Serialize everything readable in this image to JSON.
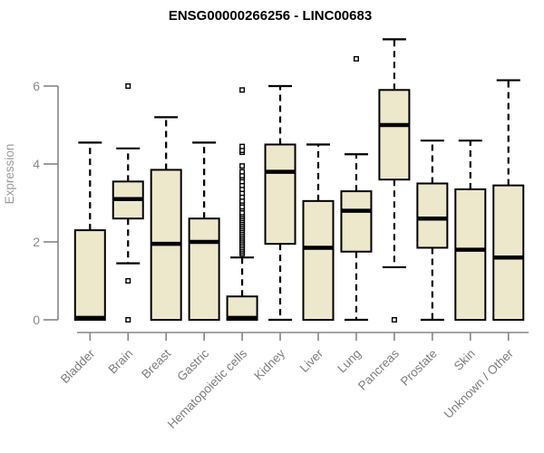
{
  "title": "ENSG00000266256 - LINC00683",
  "chart_data": {
    "type": "boxplot",
    "title": "ENSG00000266256 - LINC00683",
    "xlabel": "",
    "ylabel": "Expression",
    "yticks": [
      0,
      2,
      4,
      6
    ],
    "ylim": [
      0,
      7.3
    ],
    "grid": false,
    "legend": "none",
    "categories": [
      "Bladder",
      "Brain",
      "Breast",
      "Gastric",
      "Hematopoietic cells",
      "Kidney",
      "Liver",
      "Lung",
      "Pancreas",
      "Prostate",
      "Skin",
      "Unknown / Other"
    ],
    "boxes": [
      {
        "category": "Bladder",
        "whisker_low": 0,
        "q1": 0,
        "median": 0.05,
        "q3": 2.3,
        "whisker_high": 4.55,
        "outliers": []
      },
      {
        "category": "Brain",
        "whisker_low": 1.45,
        "q1": 2.6,
        "median": 3.1,
        "q3": 3.55,
        "whisker_high": 4.4,
        "outliers": [
          6.0,
          1.0,
          0.0
        ]
      },
      {
        "category": "Breast",
        "whisker_low": 0,
        "q1": 0,
        "median": 1.95,
        "q3": 3.85,
        "whisker_high": 5.2,
        "outliers": []
      },
      {
        "category": "Gastric",
        "whisker_low": 0,
        "q1": 0,
        "median": 2.0,
        "q3": 2.6,
        "whisker_high": 4.55,
        "outliers": []
      },
      {
        "category": "Hematopoietic cells",
        "whisker_low": 0,
        "q1": 0,
        "median": 0.05,
        "q3": 0.6,
        "whisker_high": 1.6,
        "outliers": [
          1.7,
          1.75,
          1.8,
          1.85,
          1.9,
          1.95,
          2.0,
          2.05,
          2.1,
          2.15,
          2.2,
          2.25,
          2.3,
          2.35,
          2.4,
          2.45,
          2.5,
          2.55,
          2.6,
          2.65,
          2.7,
          2.75,
          2.85,
          2.9,
          3.0,
          3.05,
          3.15,
          3.25,
          3.35,
          3.45,
          3.55,
          3.65,
          3.7,
          3.8,
          3.95,
          4.3,
          4.35,
          4.45,
          5.9
        ]
      },
      {
        "category": "Kidney",
        "whisker_low": 0,
        "q1": 1.95,
        "median": 3.8,
        "q3": 4.5,
        "whisker_high": 6.0,
        "outliers": []
      },
      {
        "category": "Liver",
        "whisker_low": 0,
        "q1": 0,
        "median": 1.85,
        "q3": 3.05,
        "whisker_high": 4.5,
        "outliers": []
      },
      {
        "category": "Lung",
        "whisker_low": 0,
        "q1": 1.75,
        "median": 2.8,
        "q3": 3.3,
        "whisker_high": 4.25,
        "outliers": [
          6.7
        ]
      },
      {
        "category": "Pancreas",
        "whisker_low": 1.35,
        "q1": 3.6,
        "median": 5.0,
        "q3": 5.9,
        "whisker_high": 7.2,
        "outliers": [
          0.0
        ]
      },
      {
        "category": "Prostate",
        "whisker_low": 0,
        "q1": 1.85,
        "median": 2.6,
        "q3": 3.5,
        "whisker_high": 4.6,
        "outliers": []
      },
      {
        "category": "Skin",
        "whisker_low": 0,
        "q1": 0,
        "median": 1.8,
        "q3": 3.35,
        "whisker_high": 4.6,
        "outliers": []
      },
      {
        "category": "Unknown / Other",
        "whisker_low": 0,
        "q1": 0,
        "median": 1.6,
        "q3": 3.45,
        "whisker_high": 6.15,
        "outliers": []
      }
    ],
    "colors": {
      "box_fill": "#EDE8CC",
      "box_border": "#000000",
      "median": "#000000",
      "whisker": "#000000",
      "outlier_stroke": "#000000",
      "outlier_fill": "#FFFFFF",
      "axis": "#858585",
      "tick_label": "#8A8A8A",
      "category_label": "#7D7D7D",
      "title": "#000000",
      "ylabel": "#9B9B9B",
      "background": "#FFFFFF"
    }
  }
}
